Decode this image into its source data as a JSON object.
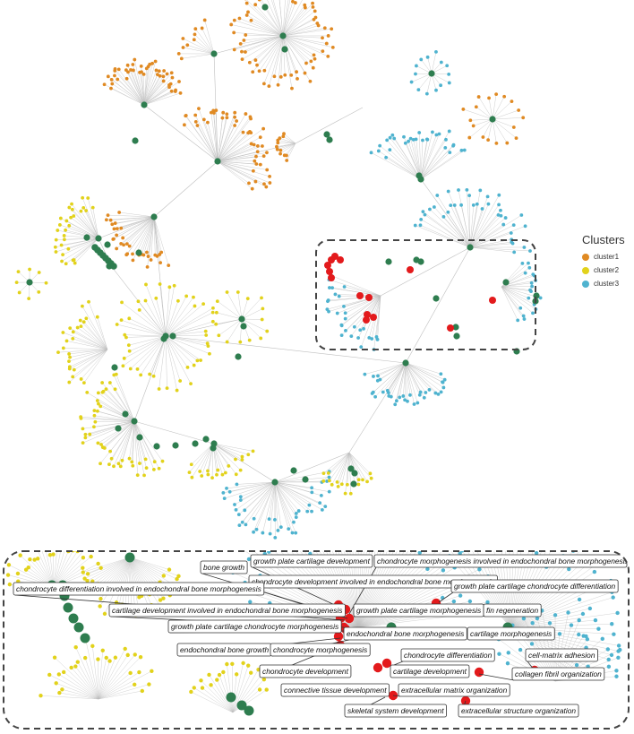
{
  "legend": {
    "title": "Clusters",
    "items": [
      {
        "label": "cluster1",
        "color": "#e08a23"
      },
      {
        "label": "cluster2",
        "color": "#e2d21b"
      },
      {
        "label": "cluster3",
        "color": "#4fb3cf"
      }
    ]
  },
  "colors": {
    "hub": "#2e7d4f",
    "highlight": "#e31a1c",
    "edge": "#bfbfbf",
    "box": "#444444"
  },
  "zoom_labels": [
    "bone growth",
    "growth plate cartilage development",
    "chondrocyte morphogenesis involved in endochondral bone morphogenesis",
    "chondrocyte development involved in endochondral bone morphogenesis",
    "chondrocyte differentiation involved in endochondral bone morphogenesis",
    "growth plate cartilage chondrocyte differentiation",
    "cartilage development involved in endochondral bone morphogenesis",
    "growth plate cartilage morphogenesis",
    "fin regeneration",
    "growth plate cartilage chondrocyte morphogenesis",
    "endochondral bone morphogenesis",
    "cartilage morphogenesis",
    "endochondral bone growth",
    "chondrocyte morphogenesis",
    "chondrocyte differentiation",
    "cell-matrix adhesion",
    "chondrocyte development",
    "cartilage development",
    "collagen fibril organization",
    "connective tissue development",
    "extracellular matrix organization",
    "skeletal system development",
    "extracellular structure organization"
  ]
}
